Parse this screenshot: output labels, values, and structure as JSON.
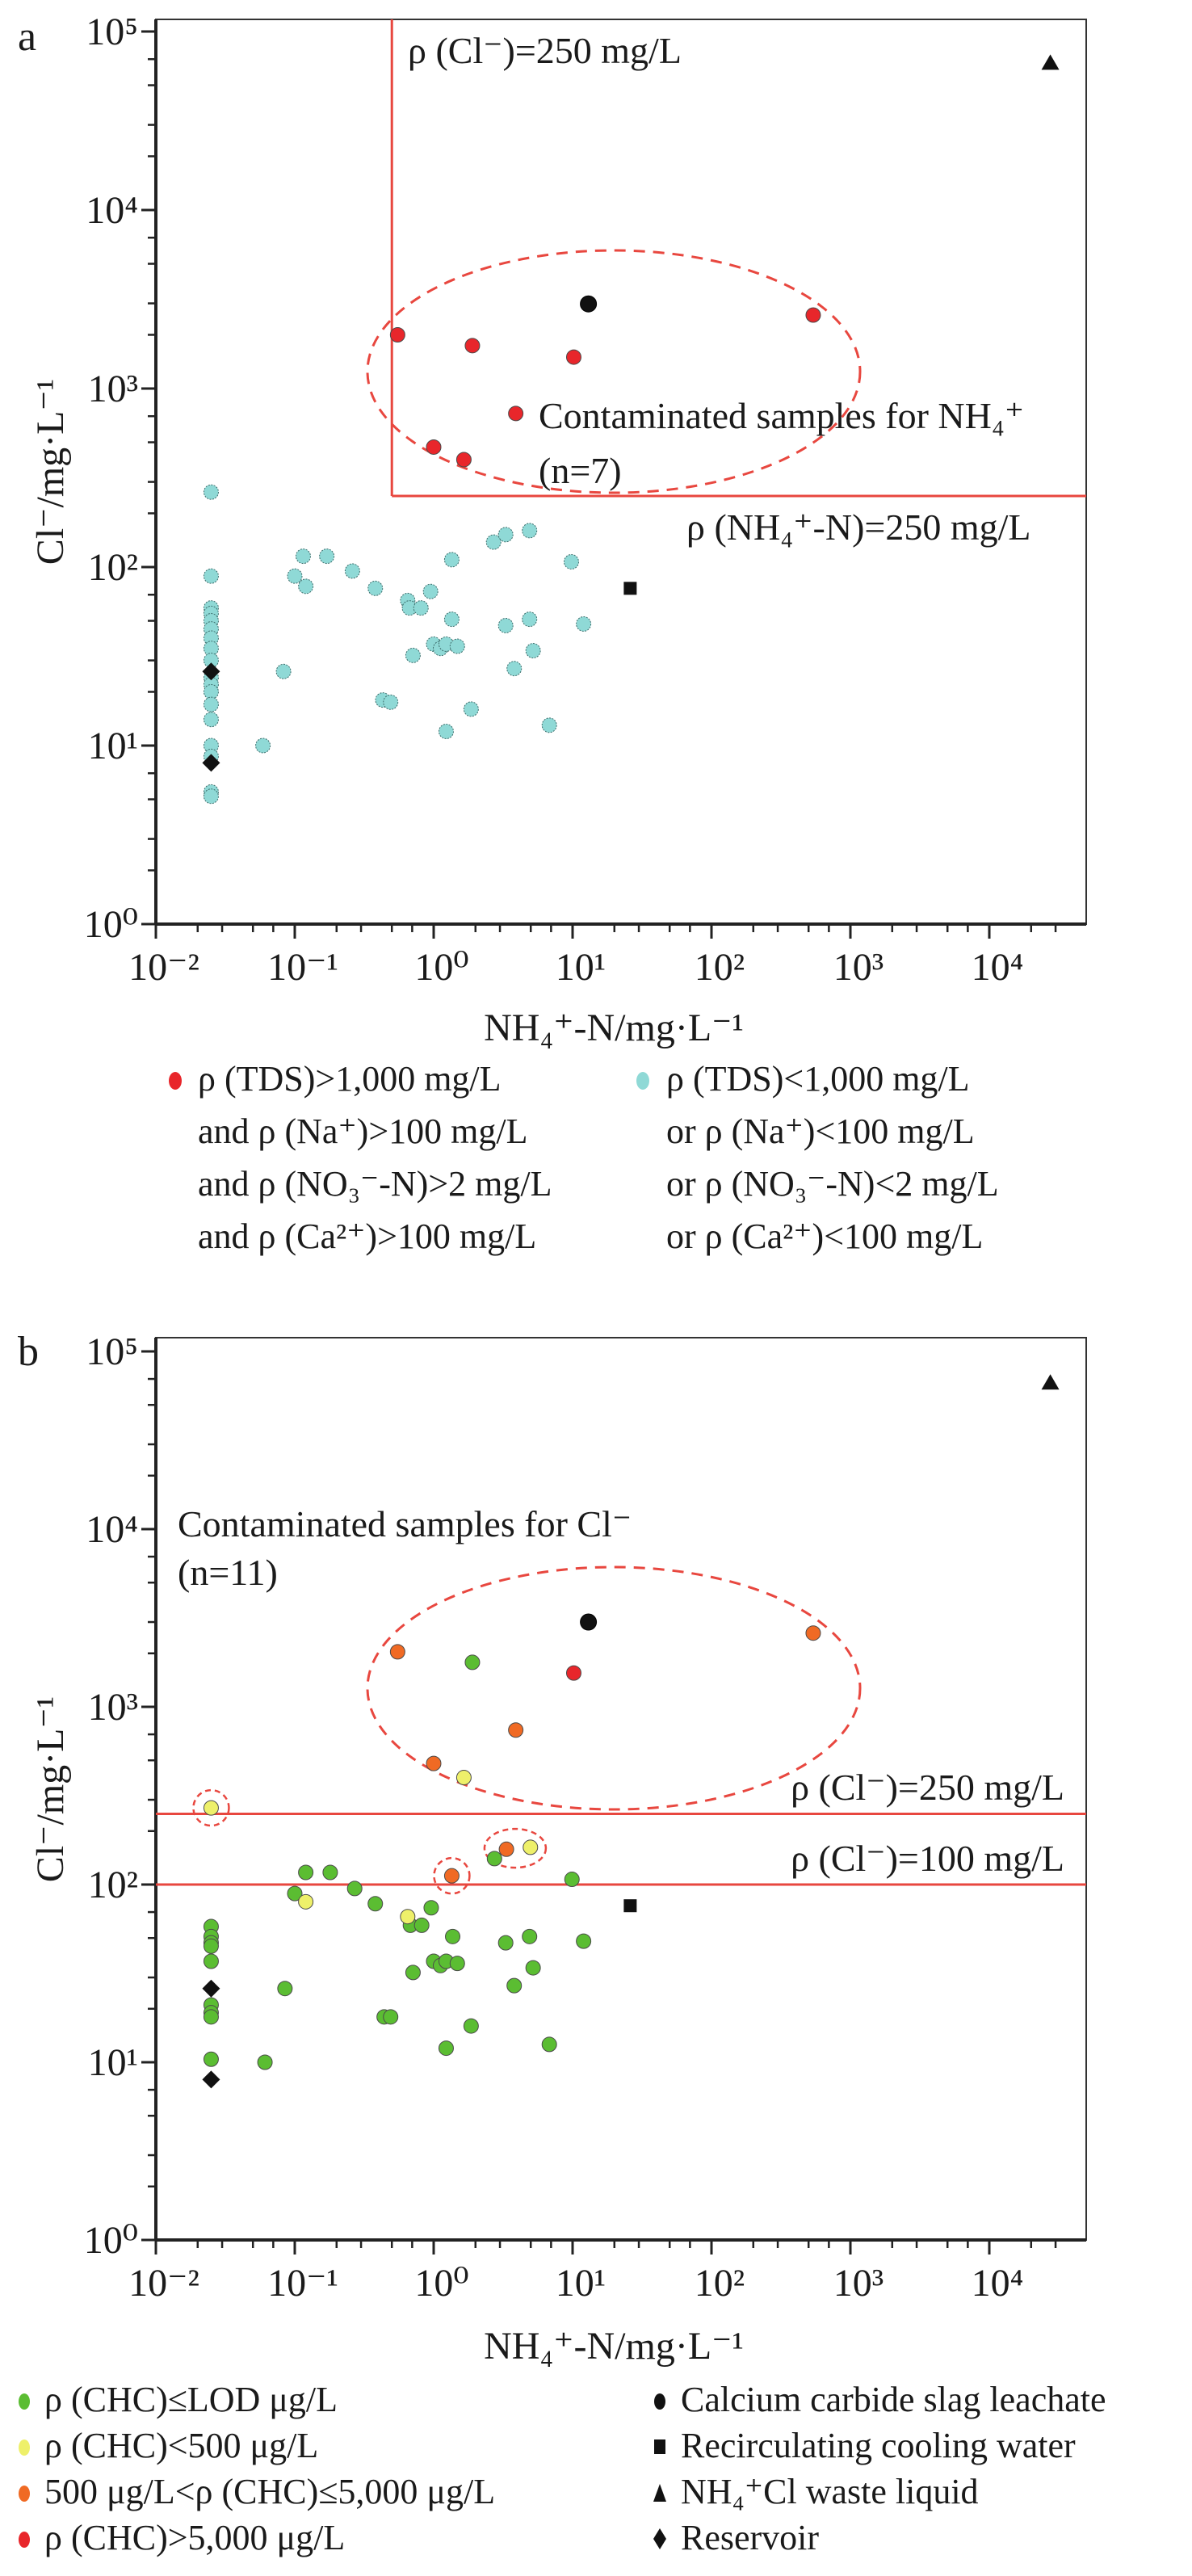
{
  "colors": {
    "red": "#e8262b",
    "cyan": "#8fd9d6",
    "green": "#5bbd32",
    "yellow": "#eef06a",
    "orange": "#f06a24",
    "black": "#111111",
    "reference_line": "#e8473f"
  },
  "chart_data": [
    {
      "panel_label": "a",
      "type": "scatter",
      "xlabel": "NH₄⁺-N/mg·L⁻¹",
      "ylabel": "Cl⁻/mg·L⁻¹",
      "x_scale": "log",
      "y_scale": "log",
      "xlim": [
        0.01,
        50000
      ],
      "ylim": [
        1,
        120000
      ],
      "x_tick_labels": [
        "10⁻²",
        "10⁻¹",
        "10⁰",
        "10¹",
        "10²",
        "10³",
        "10⁴"
      ],
      "y_tick_labels": [
        "10⁰",
        "10¹",
        "10²",
        "10³",
        "10⁴",
        "10⁵"
      ],
      "grid": false,
      "reference_lines": [
        {
          "orientation": "vertical",
          "x": 0.5,
          "label": "ρ (Cl⁻)=250 mg/L"
        },
        {
          "orientation": "horizontal",
          "y": 250,
          "x_from": 0.5,
          "label": "ρ (NH₄⁺-N)=250 mg/L"
        }
      ],
      "annotations": [
        "Contaminated samples for NH₄⁺",
        "(n=7)"
      ],
      "legend_position": "below",
      "series": [
        {
          "name": "ρ (TDS)>1,000 mg/L|and ρ (Na⁺)>100 mg/L|and ρ (NO₃⁻-N)>2 mg/L|and ρ (Ca²⁺)>100 mg/L",
          "color": "red",
          "marker": "circle",
          "points": [
            [
              0.55,
              2000
            ],
            [
              1.9,
              1740
            ],
            [
              10.2,
              1500
            ],
            [
              540,
              2580
            ],
            [
              3.9,
              725
            ],
            [
              1.0,
              470
            ],
            [
              1.65,
              400
            ]
          ]
        },
        {
          "name": "ρ (TDS)<1,000 mg/L|or ρ (Na⁺)<100 mg/L|or ρ (NO₃⁻-N)<2 mg/L|or ρ (Ca²⁺)<100 mg/L",
          "color": "cyan",
          "marker": "circle",
          "points": [
            [
              0.025,
              263
            ],
            [
              0.025,
              89
            ],
            [
              0.025,
              59
            ],
            [
              0.025,
              55
            ],
            [
              0.025,
              50
            ],
            [
              0.025,
              45
            ],
            [
              0.025,
              40
            ],
            [
              0.025,
              35
            ],
            [
              0.025,
              30
            ],
            [
              0.025,
              24
            ],
            [
              0.025,
              22
            ],
            [
              0.025,
              20
            ],
            [
              0.025,
              17
            ],
            [
              0.025,
              14
            ],
            [
              0.025,
              10
            ],
            [
              0.025,
              8.7
            ],
            [
              0.025,
              5.5
            ],
            [
              0.025,
              5.2
            ],
            [
              0.083,
              26
            ],
            [
              0.059,
              10
            ],
            [
              0.43,
              18
            ],
            [
              0.49,
              17.5
            ],
            [
              0.115,
              115
            ],
            [
              0.17,
              115
            ],
            [
              0.1,
              89
            ],
            [
              0.12,
              78
            ],
            [
              0.26,
              95
            ],
            [
              0.38,
              76
            ],
            [
              0.65,
              65
            ],
            [
              0.67,
              59
            ],
            [
              0.81,
              59
            ],
            [
              0.95,
              73
            ],
            [
              1.35,
              110
            ],
            [
              1.35,
              51
            ],
            [
              1.0,
              37
            ],
            [
              1.12,
              35
            ],
            [
              1.23,
              37
            ],
            [
              1.48,
              36
            ],
            [
              0.71,
              32
            ],
            [
              1.86,
              16
            ],
            [
              2.7,
              138
            ],
            [
              3.3,
              152
            ],
            [
              3.3,
              47
            ],
            [
              3.8,
              27
            ],
            [
              4.9,
              160
            ],
            [
              9.8,
              107
            ],
            [
              4.9,
              51
            ],
            [
              12,
              48
            ],
            [
              5.2,
              34
            ],
            [
              6.8,
              13
            ],
            [
              1.23,
              12
            ]
          ]
        },
        {
          "color": "black",
          "marker": "circle",
          "points": [
            [
              13,
              2980
            ]
          ]
        },
        {
          "color": "black",
          "marker": "square",
          "points": [
            [
              26,
              76
            ]
          ]
        },
        {
          "color": "black",
          "marker": "triangle",
          "points": [
            [
              27500,
              67000
            ]
          ]
        },
        {
          "color": "black",
          "marker": "diamond",
          "points": [
            [
              0.025,
              26
            ],
            [
              0.025,
              8
            ]
          ]
        }
      ]
    },
    {
      "panel_label": "b",
      "type": "scatter",
      "xlabel": "NH₄⁺-N/mg·L⁻¹",
      "ylabel": "Cl⁻/mg·L⁻¹",
      "x_scale": "log",
      "y_scale": "log",
      "xlim": [
        0.01,
        50000
      ],
      "ylim": [
        1,
        120000
      ],
      "x_tick_labels": [
        "10⁻²",
        "10⁻¹",
        "10⁰",
        "10¹",
        "10²",
        "10³",
        "10⁴"
      ],
      "y_tick_labels": [
        "10⁰",
        "10¹",
        "10²",
        "10³",
        "10⁴",
        "10⁵"
      ],
      "grid": false,
      "reference_lines": [
        {
          "orientation": "horizontal",
          "y": 250,
          "label": "ρ (Cl⁻)=250 mg/L"
        },
        {
          "orientation": "horizontal",
          "y": 100,
          "label": "ρ (Cl⁻)=100 mg/L"
        }
      ],
      "annotations": [
        "Contaminated samples for Cl⁻",
        "(n=11)"
      ],
      "legend_position": "below",
      "series": [
        {
          "name": "ρ (CHC)≤LOD μg/L",
          "color": "green",
          "marker": "circle",
          "points": [
            [
              0.025,
              58
            ],
            [
              0.025,
              51
            ],
            [
              0.025,
              47
            ],
            [
              0.025,
              45
            ],
            [
              0.025,
              37
            ],
            [
              0.025,
              21
            ],
            [
              0.025,
              19
            ],
            [
              0.025,
              18
            ],
            [
              0.025,
              10.4
            ],
            [
              0.12,
              117
            ],
            [
              0.18,
              117
            ],
            [
              0.1,
              89
            ],
            [
              0.27,
              95
            ],
            [
              0.38,
              78
            ],
            [
              0.68,
              59
            ],
            [
              0.82,
              59
            ],
            [
              0.96,
              74
            ],
            [
              1.37,
              51
            ],
            [
              1.0,
              37
            ],
            [
              1.12,
              35
            ],
            [
              1.23,
              37
            ],
            [
              1.48,
              36
            ],
            [
              0.71,
              32
            ],
            [
              0.085,
              26
            ],
            [
              0.44,
              18
            ],
            [
              0.49,
              18
            ],
            [
              1.86,
              16
            ],
            [
              1.23,
              12
            ],
            [
              0.061,
              10
            ],
            [
              2.74,
              140
            ],
            [
              3.3,
              47
            ],
            [
              3.8,
              27
            ],
            [
              9.9,
              107
            ],
            [
              4.9,
              51
            ],
            [
              12,
              48
            ],
            [
              5.2,
              34
            ],
            [
              6.8,
              12.6
            ],
            [
              1.9,
              1780
            ]
          ]
        },
        {
          "name": "ρ (CHC)<500 μg/L",
          "color": "yellow",
          "marker": "circle",
          "points": [
            [
              0.025,
              270
            ],
            [
              0.12,
              80
            ],
            [
              0.65,
              66
            ],
            [
              4.97,
              162
            ],
            [
              1.65,
              400
            ]
          ]
        },
        {
          "name": "500 μg/L<ρ (CHC)≤5,000 μg/L",
          "color": "orange",
          "marker": "circle",
          "points": [
            [
              1.35,
              112
            ],
            [
              3.34,
              158
            ],
            [
              0.55,
              2040
            ],
            [
              3.9,
              740
            ],
            [
              1.0,
              480
            ],
            [
              540,
              2600
            ]
          ]
        },
        {
          "name": "ρ (CHC)>5,000 μg/L",
          "color": "red",
          "marker": "circle",
          "points": [
            [
              10.2,
              1550
            ]
          ]
        },
        {
          "name": "Calcium carbide slag leachate",
          "color": "black",
          "marker": "circle",
          "points": [
            [
              13,
              3000
            ]
          ]
        },
        {
          "name": "Recirculating cooling water",
          "color": "black",
          "marker": "square",
          "points": [
            [
              26,
              76
            ]
          ]
        },
        {
          "name": "NH₄⁺Cl waste liquid",
          "color": "black",
          "marker": "triangle",
          "points": [
            [
              27500,
              67000
            ]
          ]
        },
        {
          "name": "Reservoir",
          "color": "black",
          "marker": "diamond",
          "points": [
            [
              0.025,
              26
            ],
            [
              0.025,
              8
            ]
          ]
        }
      ]
    }
  ]
}
